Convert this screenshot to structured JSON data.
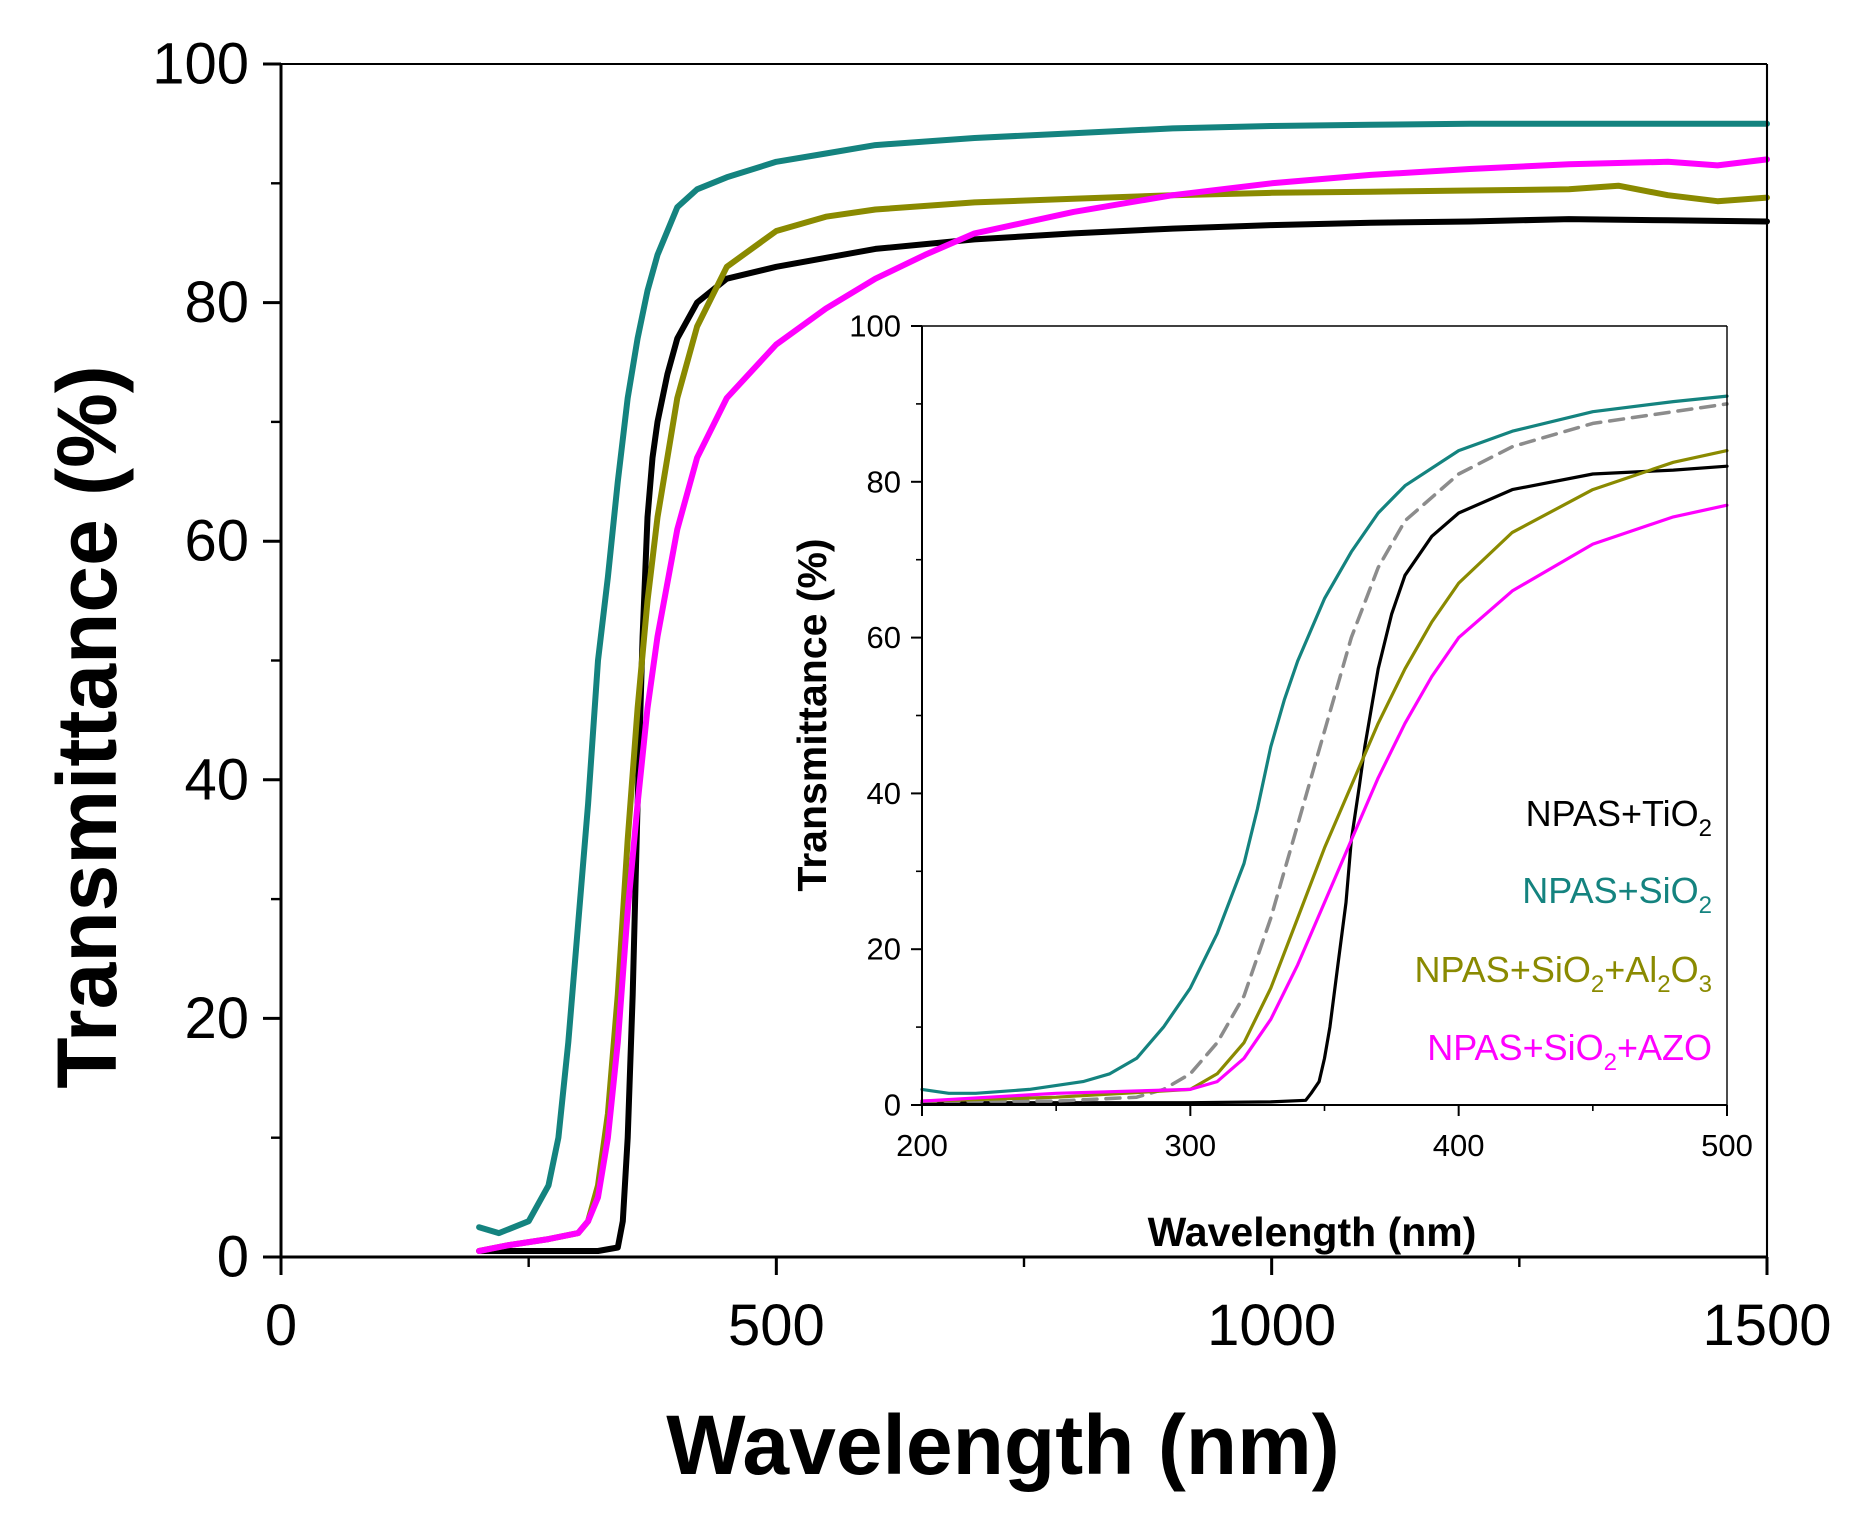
{
  "chart_data": [
    {
      "type": "line",
      "name": "main",
      "xlabel": "Wavelength (nm)",
      "ylabel": "Transmittance (%)",
      "xlim": [
        0,
        1500
      ],
      "ylim": [
        0,
        100
      ],
      "xticks": [
        0,
        500,
        1000,
        1500
      ],
      "yticks": [
        0,
        20,
        40,
        60,
        80,
        100
      ],
      "xtick_labels": [
        "0",
        "500",
        "1000",
        "1500"
      ],
      "ytick_labels": [
        "0",
        "20",
        "40",
        "60",
        "80",
        "100"
      ],
      "series": [
        {
          "name": "NPAS+TiO2",
          "color": "#000000",
          "x": [
            200,
            220,
            250,
            280,
            300,
            320,
            340,
            345,
            350,
            355,
            360,
            365,
            370,
            375,
            380,
            390,
            400,
            420,
            450,
            500,
            600,
            700,
            800,
            900,
            1000,
            1100,
            1200,
            1300,
            1400,
            1500
          ],
          "y": [
            0.5,
            0.5,
            0.5,
            0.5,
            0.5,
            0.5,
            0.8,
            3,
            10,
            22,
            38,
            52,
            62,
            67,
            70,
            74,
            77,
            80,
            82,
            83,
            84.5,
            85.3,
            85.8,
            86.2,
            86.5,
            86.7,
            86.8,
            87,
            86.9,
            86.8
          ]
        },
        {
          "name": "NPAS+SiO2",
          "color": "#14837f",
          "x": [
            200,
            220,
            250,
            270,
            280,
            290,
            300,
            310,
            320,
            330,
            340,
            350,
            360,
            370,
            380,
            400,
            420,
            450,
            500,
            550,
            600,
            700,
            800,
            900,
            1000,
            1100,
            1200,
            1300,
            1400,
            1500
          ],
          "y": [
            2.5,
            2,
            3,
            6,
            10,
            18,
            28,
            38,
            50,
            57,
            65,
            72,
            77,
            81,
            84,
            88,
            89.5,
            90.5,
            91.8,
            92.5,
            93.2,
            93.8,
            94.2,
            94.6,
            94.8,
            94.9,
            95,
            95,
            95,
            95
          ]
        },
        {
          "name": "NPAS+SiO2+Al2O3",
          "color": "#8a8a00",
          "x": [
            200,
            230,
            270,
            300,
            310,
            320,
            330,
            340,
            350,
            360,
            370,
            380,
            400,
            420,
            450,
            500,
            550,
            600,
            700,
            800,
            900,
            1000,
            1100,
            1200,
            1300,
            1350,
            1400,
            1450,
            1500
          ],
          "y": [
            0.5,
            1,
            1.5,
            2,
            3,
            6,
            12,
            22,
            35,
            46,
            55,
            62,
            72,
            78,
            83,
            86,
            87.2,
            87.8,
            88.4,
            88.7,
            89,
            89.2,
            89.3,
            89.4,
            89.5,
            89.8,
            89,
            88.5,
            88.8
          ]
        },
        {
          "name": "NPAS+SiO2+AZO",
          "color": "#ff00ff",
          "x": [
            200,
            230,
            270,
            300,
            310,
            320,
            330,
            340,
            350,
            360,
            370,
            380,
            400,
            420,
            450,
            500,
            550,
            600,
            650,
            700,
            800,
            900,
            1000,
            1100,
            1200,
            1300,
            1400,
            1450,
            1500
          ],
          "y": [
            0.5,
            1,
            1.5,
            2,
            3,
            5,
            10,
            18,
            29,
            38,
            46,
            52,
            61,
            67,
            72,
            76.5,
            79.5,
            82,
            84,
            85.8,
            87.6,
            89,
            90,
            90.7,
            91.2,
            91.6,
            91.8,
            91.5,
            92
          ]
        }
      ]
    },
    {
      "type": "line",
      "name": "inset",
      "xlabel": "Wavelength (nm)",
      "ylabel": "Transmittance (%)",
      "xlim": [
        200,
        500
      ],
      "ylim": [
        0,
        100
      ],
      "xticks": [
        200,
        300,
        400,
        500
      ],
      "yticks": [
        0,
        20,
        40,
        60,
        80,
        100
      ],
      "xtick_labels": [
        "200",
        "300",
        "400",
        "500"
      ],
      "ytick_labels": [
        "0",
        "20",
        "40",
        "60",
        "80",
        "100"
      ],
      "legend": [
        {
          "base": "NPAS+TiO",
          "sub": "2",
          "tail": "",
          "color": "#000000"
        },
        {
          "base": "NPAS+SiO",
          "sub": "2",
          "tail": "",
          "color": "#14837f"
        },
        {
          "base": "NPAS+SiO",
          "sub": "2",
          "tail": "+Al",
          "sub2": "2",
          "tail2": "O",
          "sub3": "3",
          "color": "#8a8a00"
        },
        {
          "base": "NPAS+SiO",
          "sub": "2",
          "tail": "+AZO",
          "color": "#ff00ff"
        }
      ],
      "series": [
        {
          "name": "NPAS+TiO2",
          "color": "#000000",
          "x": [
            200,
            250,
            300,
            330,
            343,
            345,
            348,
            350,
            352,
            355,
            358,
            360,
            363,
            365,
            368,
            370,
            375,
            380,
            390,
            400,
            420,
            450,
            480,
            500
          ],
          "y": [
            0.3,
            0.3,
            0.3,
            0.4,
            0.6,
            1.5,
            3,
            6,
            10,
            18,
            26,
            34,
            41,
            46,
            52,
            56,
            63,
            68,
            73,
            76,
            79,
            81,
            81.5,
            82
          ]
        },
        {
          "name": "NPAS+SiO2",
          "color": "#14837f",
          "x": [
            200,
            210,
            220,
            240,
            260,
            270,
            280,
            290,
            300,
            310,
            320,
            325,
            330,
            335,
            340,
            345,
            350,
            360,
            370,
            380,
            400,
            420,
            450,
            480,
            500
          ],
          "y": [
            2,
            1.5,
            1.5,
            2,
            3,
            4,
            6,
            10,
            15,
            22,
            31,
            38,
            46,
            52,
            57,
            61,
            65,
            71,
            76,
            79.5,
            84,
            86.5,
            89,
            90.3,
            91
          ]
        },
        {
          "name": "dashed reference",
          "color": "#8c8c8c",
          "dashed": true,
          "x": [
            200,
            250,
            280,
            290,
            300,
            310,
            320,
            330,
            340,
            350,
            360,
            370,
            380,
            400,
            420,
            450,
            480,
            500
          ],
          "y": [
            0.5,
            0.5,
            1,
            2,
            4,
            8,
            14,
            24,
            36,
            48,
            60,
            69,
            75,
            81,
            84.5,
            87.5,
            89,
            90
          ]
        },
        {
          "name": "NPAS+SiO2+Al2O3",
          "color": "#8a8a00",
          "x": [
            200,
            250,
            300,
            310,
            320,
            330,
            340,
            350,
            360,
            370,
            380,
            390,
            400,
            420,
            450,
            480,
            500
          ],
          "y": [
            0.5,
            1,
            2,
            4,
            8,
            15,
            24,
            33,
            41,
            49,
            56,
            62,
            67,
            73.5,
            79,
            82.5,
            84
          ]
        },
        {
          "name": "NPAS+SiO2+AZO",
          "color": "#ff00ff",
          "x": [
            200,
            250,
            300,
            310,
            320,
            330,
            340,
            350,
            360,
            370,
            380,
            390,
            400,
            420,
            450,
            480,
            500
          ],
          "y": [
            0.5,
            1.5,
            2,
            3,
            6,
            11,
            18,
            26,
            34,
            42,
            49,
            55,
            60,
            66,
            72,
            75.5,
            77
          ]
        }
      ]
    }
  ]
}
